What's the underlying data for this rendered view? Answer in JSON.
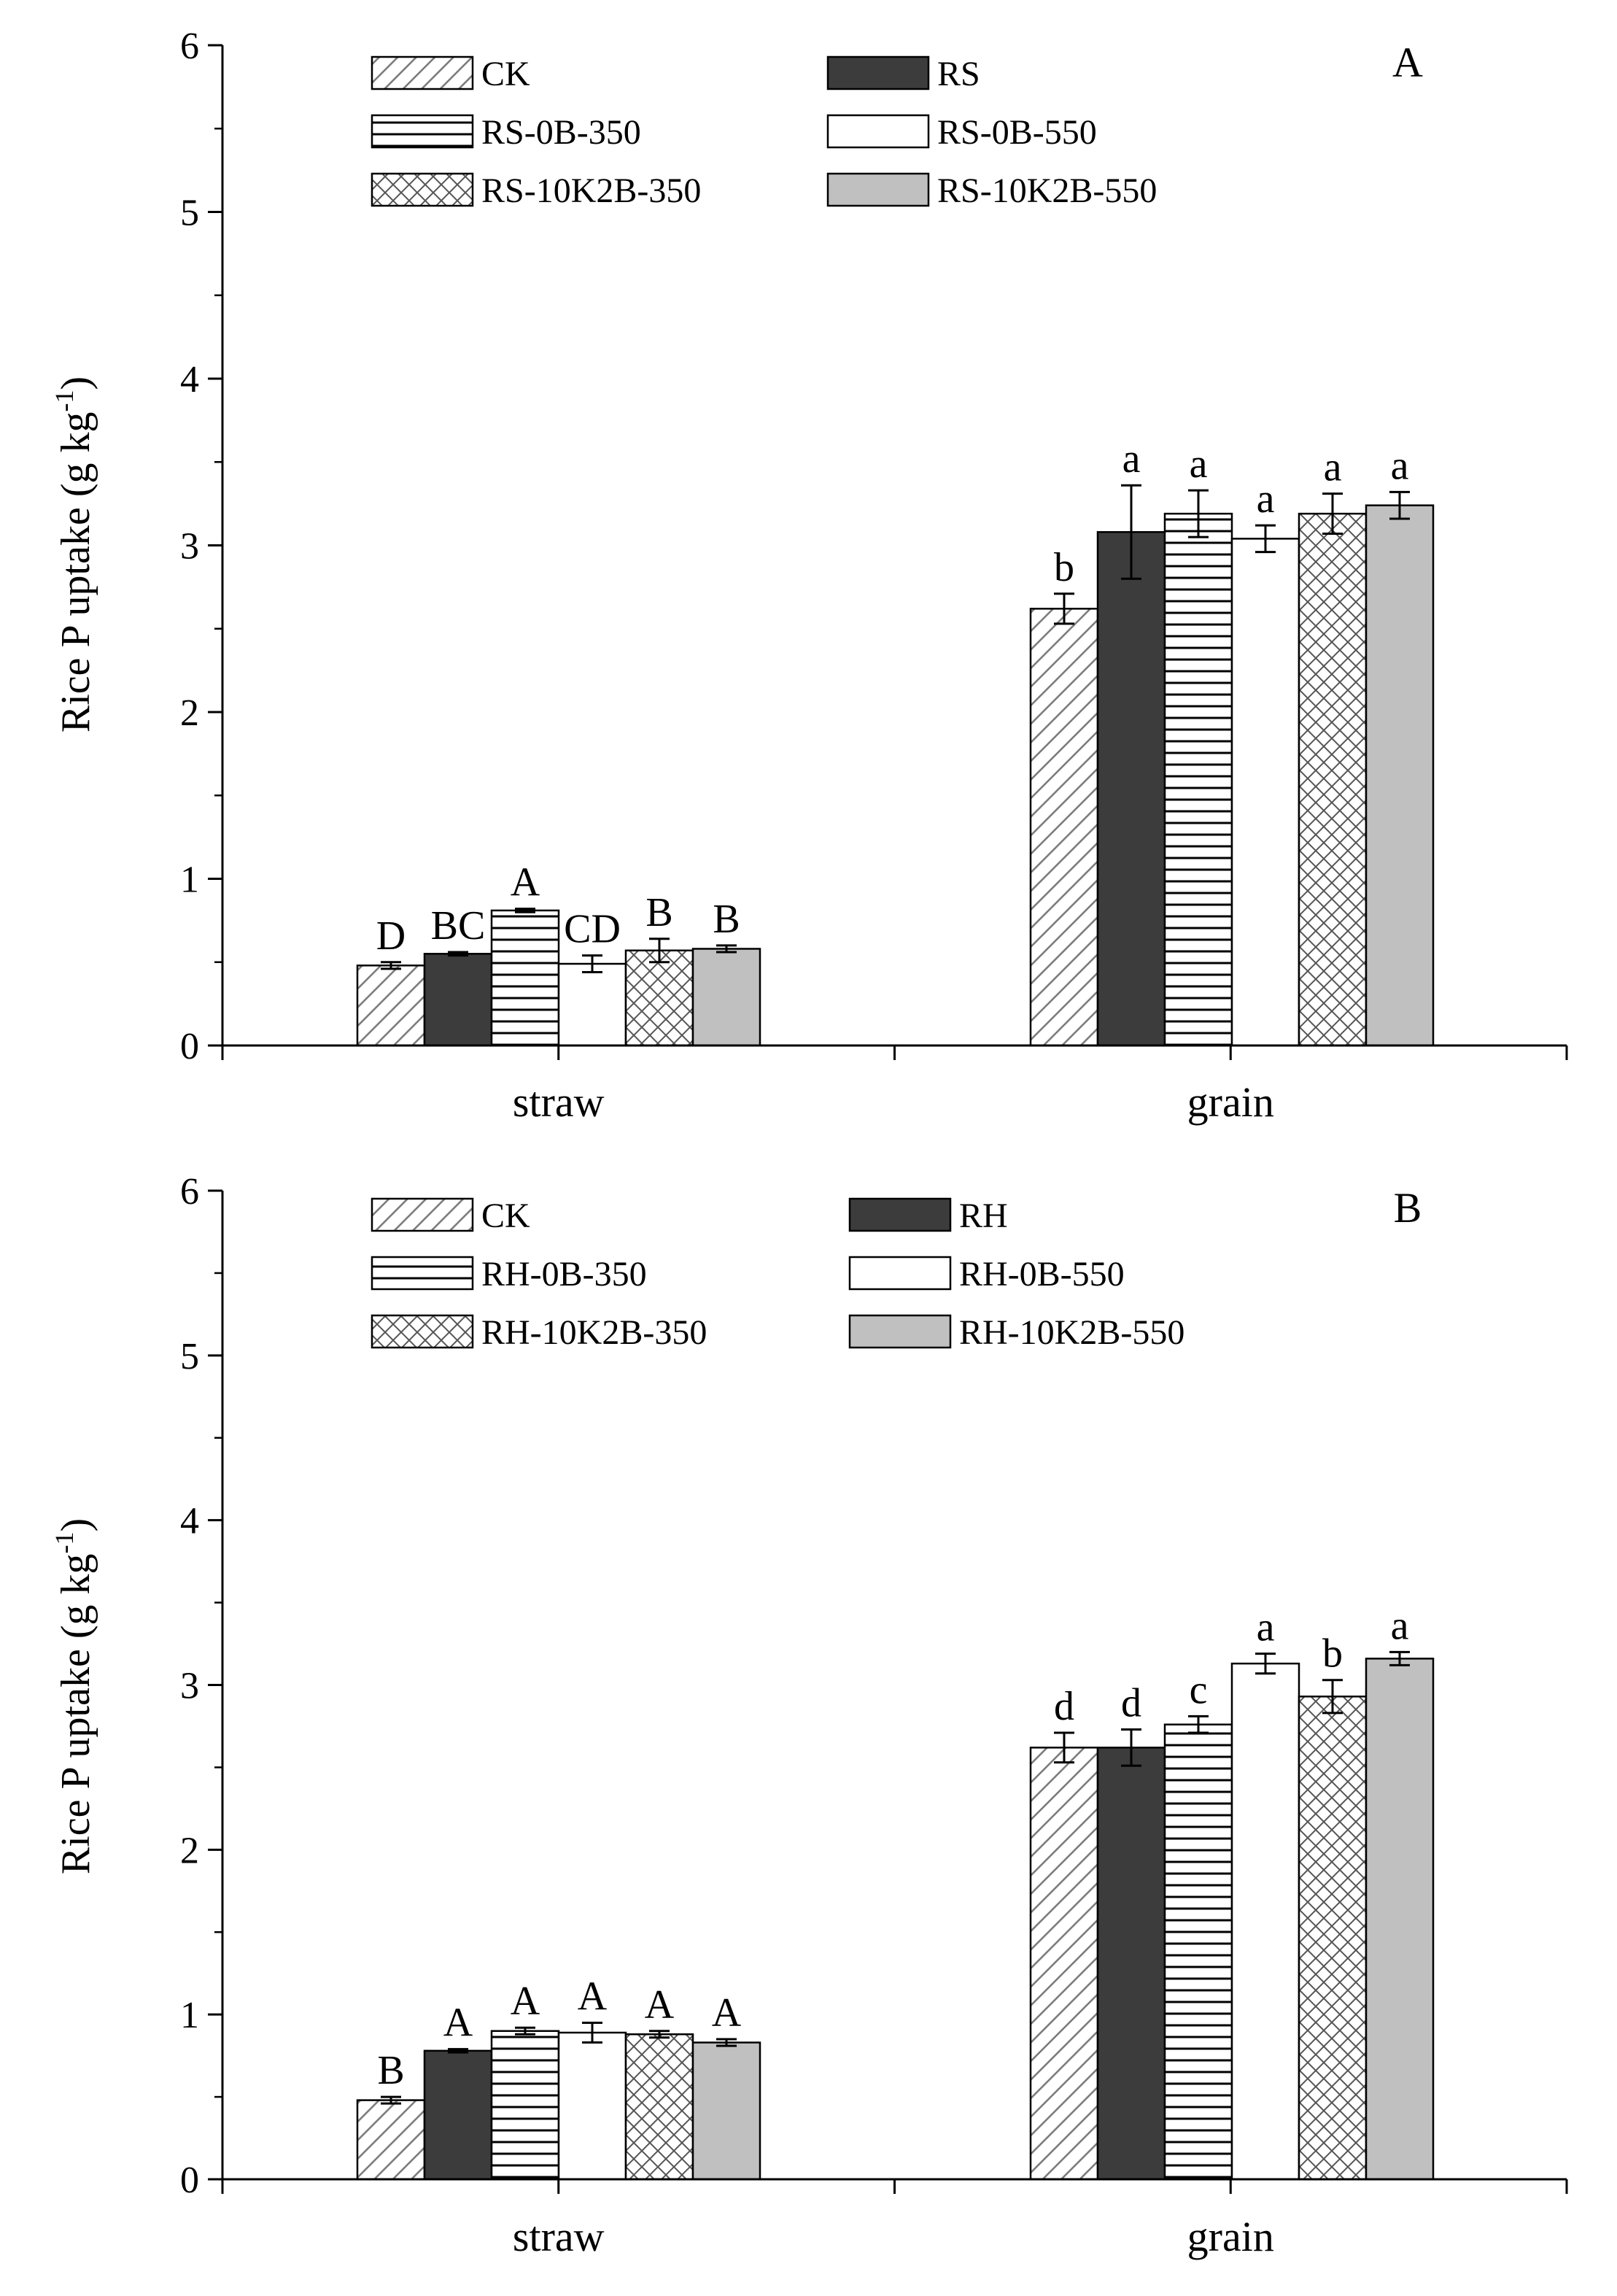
{
  "figure": {
    "panels": [
      {
        "id": "A",
        "panel_label": "A",
        "ylabel_main": "Rice P uptake (g kg",
        "ylabel_sup": "-1",
        "ylabel_close": ")"
      },
      {
        "id": "B",
        "panel_label": "B",
        "ylabel_main": "Rice P uptake (g kg",
        "ylabel_sup": "-1",
        "ylabel_close": ")"
      }
    ]
  },
  "chart_data": [
    {
      "type": "bar",
      "panel": "A",
      "title": "",
      "xlabel": "",
      "ylabel": "Rice P uptake (g kg-1)",
      "ylim": [
        0,
        6
      ],
      "yticks": [
        "0",
        "1",
        "2",
        "3",
        "4",
        "5",
        "6"
      ],
      "categories": [
        "straw",
        "grain"
      ],
      "legend_position": "top",
      "series": [
        {
          "name": "CK",
          "pattern": "diag",
          "values": [
            0.48,
            2.62
          ],
          "errors": [
            0.02,
            0.09
          ],
          "letters": [
            "D",
            "b"
          ]
        },
        {
          "name": "RS",
          "pattern": "dark",
          "values": [
            0.55,
            3.08
          ],
          "errors": [
            0.01,
            0.28
          ],
          "letters": [
            "BC",
            "a"
          ]
        },
        {
          "name": "RS-0B-350",
          "pattern": "hlines",
          "values": [
            0.81,
            3.19
          ],
          "errors": [
            0.01,
            0.14
          ],
          "letters": [
            "A",
            "a"
          ]
        },
        {
          "name": "RS-0B-550",
          "pattern": "white",
          "values": [
            0.49,
            3.04
          ],
          "errors": [
            0.05,
            0.08
          ],
          "letters": [
            "CD",
            "a"
          ]
        },
        {
          "name": "RS-10K2B-350",
          "pattern": "cross",
          "values": [
            0.57,
            3.19
          ],
          "errors": [
            0.07,
            0.12
          ],
          "letters": [
            "B",
            "a"
          ]
        },
        {
          "name": "RS-10K2B-550",
          "pattern": "gray",
          "values": [
            0.58,
            3.24
          ],
          "errors": [
            0.02,
            0.08
          ],
          "letters": [
            "B",
            "a"
          ]
        }
      ]
    },
    {
      "type": "bar",
      "panel": "B",
      "title": "",
      "xlabel": "",
      "ylabel": "Rice P uptake (g kg-1)",
      "ylim": [
        0,
        6
      ],
      "yticks": [
        "0",
        "1",
        "2",
        "3",
        "4",
        "5",
        "6"
      ],
      "categories": [
        "straw",
        "grain"
      ],
      "legend_position": "top",
      "series": [
        {
          "name": "CK",
          "pattern": "diag",
          "values": [
            0.48,
            2.62
          ],
          "errors": [
            0.02,
            0.09
          ],
          "letters": [
            "B",
            "d"
          ]
        },
        {
          "name": "RH",
          "pattern": "dark",
          "values": [
            0.78,
            2.62
          ],
          "errors": [
            0.01,
            0.11
          ],
          "letters": [
            "A",
            "d"
          ]
        },
        {
          "name": "RH-0B-350",
          "pattern": "hlines",
          "values": [
            0.9,
            2.76
          ],
          "errors": [
            0.02,
            0.05
          ],
          "letters": [
            "A",
            "c"
          ]
        },
        {
          "name": "RH-0B-550",
          "pattern": "white",
          "values": [
            0.89,
            3.13
          ],
          "errors": [
            0.06,
            0.06
          ],
          "letters": [
            "A",
            "a"
          ]
        },
        {
          "name": "RH-10K2B-350",
          "pattern": "cross",
          "values": [
            0.88,
            2.93
          ],
          "errors": [
            0.02,
            0.1
          ],
          "letters": [
            "A",
            "b"
          ]
        },
        {
          "name": "RH-10K2B-550",
          "pattern": "gray",
          "values": [
            0.83,
            3.16
          ],
          "errors": [
            0.02,
            0.04
          ],
          "letters": [
            "A",
            "a"
          ]
        }
      ]
    }
  ]
}
